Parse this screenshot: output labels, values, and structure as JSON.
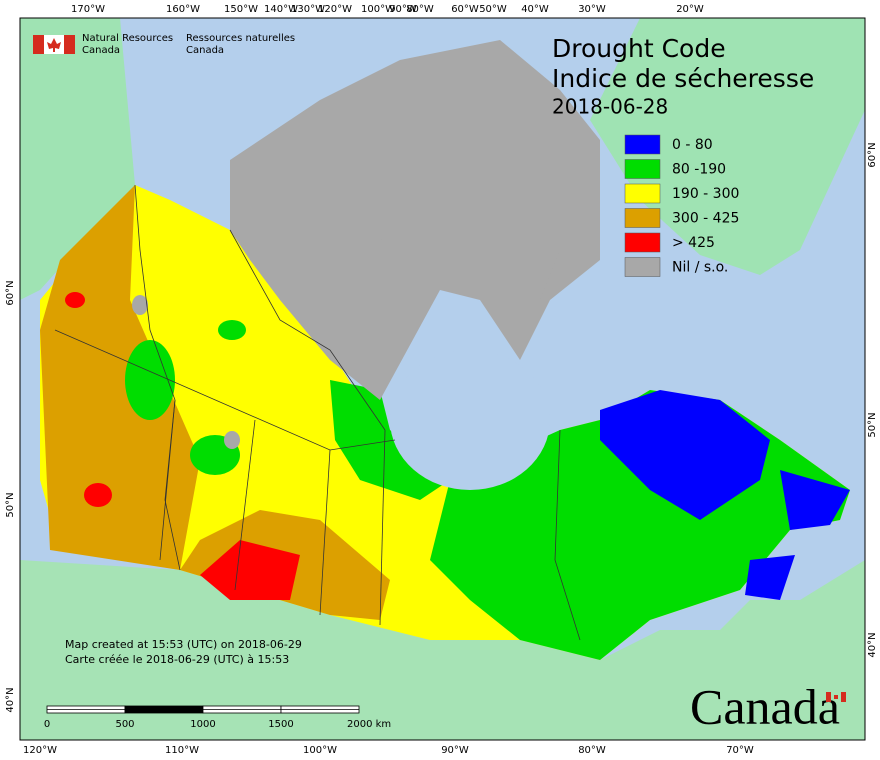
{
  "header": {
    "agency_en": [
      "Natural Resources",
      "Canada"
    ],
    "agency_fr": [
      "Ressources naturelles",
      "Canada"
    ]
  },
  "title": {
    "en": "Drought Code",
    "fr": "Indice de sécheresse",
    "date": "2018-06-28"
  },
  "legend": [
    {
      "label": "0 - 80",
      "color": "#0000ff"
    },
    {
      "label": "80 -190",
      "color": "#00dd00"
    },
    {
      "label": "190 - 300",
      "color": "#ffff00"
    },
    {
      "label": "300 - 425",
      "color": "#dca000"
    },
    {
      "label": "> 425",
      "color": "#ff0000"
    },
    {
      "label": "Nil / s.o.",
      "color": "#a8a8a8"
    }
  ],
  "graticule": {
    "top": [
      "170°W",
      "160°W",
      "150°W",
      "140°W",
      "130°W",
      "120°W",
      "100°W",
      "90°W",
      "80°W",
      "60°W",
      "50°W",
      "40°W",
      "30°W",
      "20°W"
    ],
    "bottom": [
      "120°W",
      "110°W",
      "100°W",
      "90°W",
      "80°W",
      "70°W"
    ],
    "left": [
      "60°N",
      "50°N",
      "40°N"
    ],
    "right": [
      "60°N",
      "50°N",
      "40°N"
    ]
  },
  "credits": [
    "Map created at 15:53 (UTC) on 2018-06-29",
    "Carte créée le 2018-06-29 (UTC) à 15:53"
  ],
  "scale_bar": [
    "0",
    "500",
    "1000",
    "1500",
    "2000 km"
  ],
  "wordmark": "Canada"
}
